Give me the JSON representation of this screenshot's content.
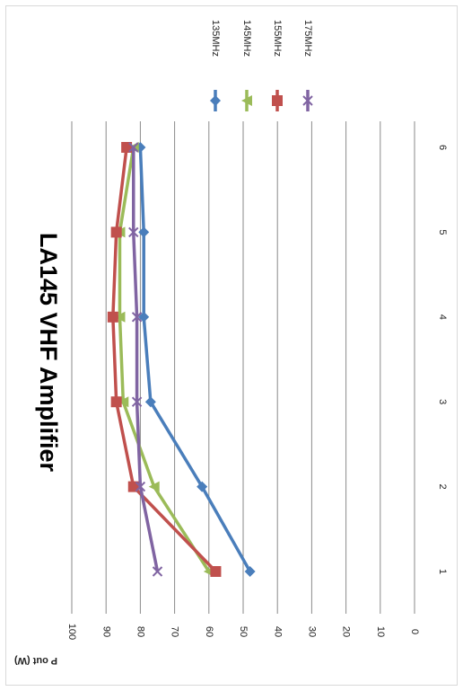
{
  "chart_data": {
    "type": "line",
    "title": "LA145 VHF Amplifier",
    "xlabel": "",
    "ylabel": "P out (W)",
    "x": [
      1,
      2,
      3,
      4,
      5,
      6
    ],
    "ylim": [
      0,
      100
    ],
    "yticks": [
      0,
      10,
      20,
      30,
      40,
      50,
      60,
      70,
      80,
      90,
      100
    ],
    "grid": true,
    "legend_position": "top-right",
    "orientation": "rotated 90 degrees clockwise",
    "series": [
      {
        "name": "135MHz",
        "color": "#4a7ebb",
        "marker": "diamond",
        "values": [
          48,
          62,
          77,
          79,
          79,
          80
        ]
      },
      {
        "name": "145MHz",
        "color": "#9bbb59",
        "marker": "triangle",
        "values": [
          60,
          76,
          85,
          86,
          86,
          82
        ]
      },
      {
        "name": "155MHz",
        "color": "#c0504d",
        "marker": "square",
        "values": [
          58,
          82,
          87,
          88,
          87,
          84
        ]
      },
      {
        "name": "175MHz",
        "color": "#8064a2",
        "marker": "x",
        "values": [
          75,
          80,
          81,
          81,
          82,
          82
        ]
      }
    ]
  }
}
